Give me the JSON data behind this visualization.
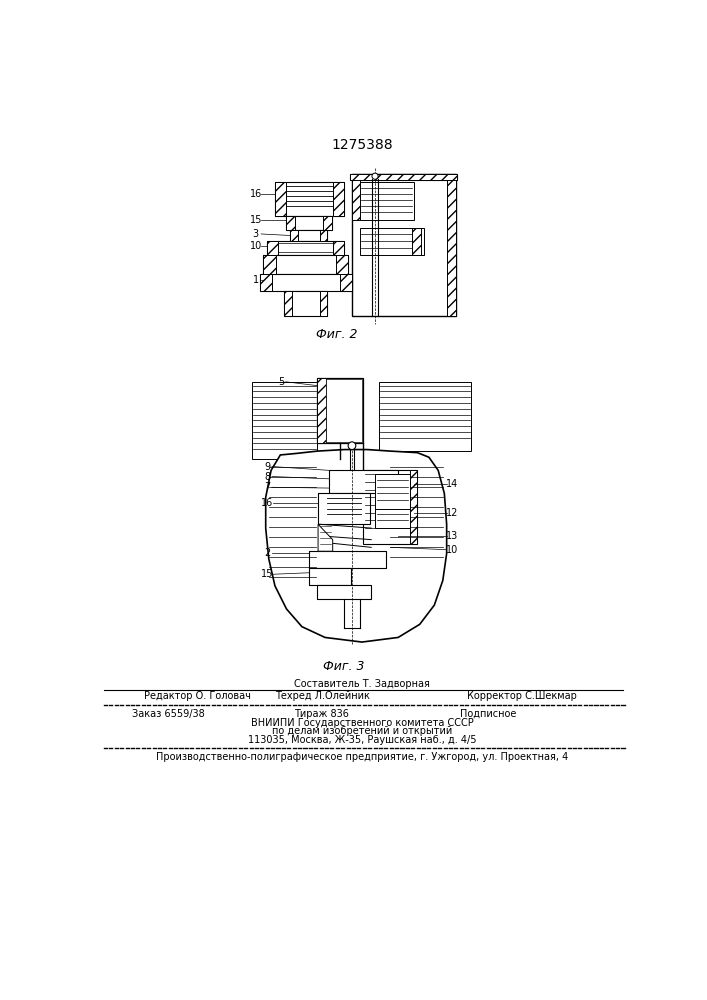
{
  "title": "1275388",
  "fig2_label": "Фиг. 2",
  "fig3_label": "Фиг. 3",
  "background": "#ffffff",
  "footer_sestavitel": "Составитель Т. Задворная",
  "footer_redaktor": "Редактор О. Головач",
  "footer_tehred": "Техред Л.Олейник",
  "footer_korrektor": "Корректор С.Шекмар",
  "footer_zakaz": "Заказ 6559/38",
  "footer_tirazh": "Тираж 836",
  "footer_podpisnoe": "Подписное",
  "footer_vnipi1": "ВНИИПИ Государственного комитета СССР",
  "footer_vnipi2": "по делам изобретений и открытий",
  "footer_vnipi3": "113035, Москва, Ж-35, Раушская наб., д. 4/5",
  "footer_proizv": "Производственно-полиграфическое предприятие, г. Ужгород, ул. Проектная, 4"
}
